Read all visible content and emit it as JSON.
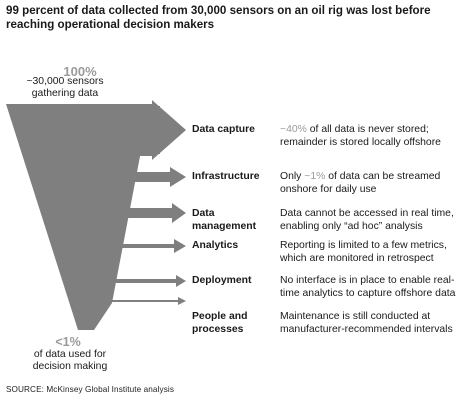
{
  "title": "99 percent of data collected from 30,000 sensors on an oil rig was lost before reaching operational decision makers",
  "top": {
    "value": "100%",
    "caption_line1": "~30,000 sensors",
    "caption_line2": "gathering data"
  },
  "bottom": {
    "value": "<1%",
    "caption_line1": "of data used for",
    "caption_line2": "decision making"
  },
  "stages": [
    {
      "label_line1": "Data capture",
      "label_line2": "",
      "desc_highlight": "~40%",
      "desc_rest": " of all data is never stored;",
      "desc_line2": "remainder is stored locally offshore"
    },
    {
      "label_line1": "Infrastructure",
      "label_line2": "",
      "desc_pre": "Only ",
      "desc_highlight": "~1%",
      "desc_rest": " of data can be streamed",
      "desc_line2": "onshore for daily use"
    },
    {
      "label_line1": "Data",
      "label_line2": "management",
      "desc_line1": "Data cannot be accessed in real time,",
      "desc_line2": "enabling only “ad hoc” analysis"
    },
    {
      "label_line1": "Analytics",
      "label_line2": "",
      "desc_line1": "Reporting is limited to a few metrics,",
      "desc_line2": "which are monitored in retrospect"
    },
    {
      "label_line1": "Deployment",
      "label_line2": "",
      "desc_line1": "No interface is in place to enable real-",
      "desc_line2": "time analytics to capture offshore data"
    },
    {
      "label_line1": "People and",
      "label_line2": "processes",
      "desc_line1": "Maintenance is still conducted at",
      "desc_line2": "manufacturer-recommended intervals"
    }
  ],
  "source": "SOURCE:   McKinsey Global Institute analysis",
  "colors": {
    "funnel": "#7f7f7f",
    "highlight": "#9a9a9a",
    "text": "#1a1a1a"
  }
}
